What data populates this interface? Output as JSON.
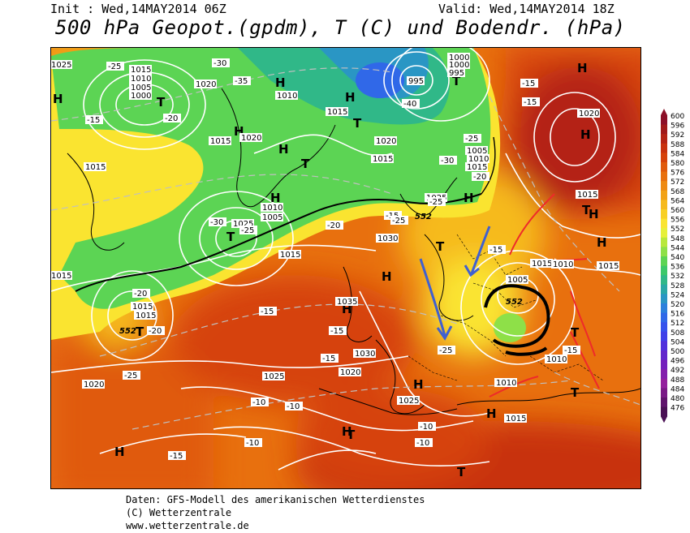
{
  "header": {
    "init": "Init : Wed,14MAY2014 06Z",
    "valid": "Valid: Wed,14MAY2014 18Z",
    "title": "500 hPa Geopot.(gpdm), T (C) und Bodendr. (hPa)"
  },
  "footer": {
    "line1": "Daten: GFS-Modell des amerikanischen Wetterdienstes",
    "line2": "(C) Wetterzentrale",
    "line3": "www.wetterzentrale.de"
  },
  "legend": {
    "labels": [
      "600",
      "596",
      "592",
      "588",
      "584",
      "580",
      "576",
      "572",
      "568",
      "564",
      "560",
      "556",
      "552",
      "548",
      "544",
      "540",
      "536",
      "532",
      "528",
      "524",
      "520",
      "516",
      "512",
      "508",
      "504",
      "500",
      "496",
      "492",
      "488",
      "484",
      "480",
      "476"
    ],
    "colors": [
      "#8c1028",
      "#a01a1a",
      "#b42414",
      "#c8320e",
      "#d6420a",
      "#e05a0c",
      "#e8700e",
      "#ee8a12",
      "#f2a216",
      "#f6ba1c",
      "#f8d024",
      "#fae430",
      "#e6f03a",
      "#b8e83c",
      "#8ee048",
      "#5cd454",
      "#3cc86a",
      "#30b888",
      "#2aa8a6",
      "#2a96c4",
      "#2c80dc",
      "#3068e8",
      "#3652ec",
      "#4040e8",
      "#5030dc",
      "#6226cc",
      "#7420bc",
      "#8420ac",
      "#94209e",
      "#7a1a86",
      "#60146c",
      "#4a1054"
    ]
  },
  "map_labels": {
    "high": "H",
    "low": "T",
    "isobars": [
      "1025",
      "1015",
      "1010",
      "1005",
      "1000",
      "1020",
      "1010",
      "1015",
      "1015",
      "1020",
      "1015",
      "1010",
      "1005",
      "1025",
      "1015",
      "1030",
      "1035",
      "1030",
      "1025",
      "1020",
      "1025",
      "1020",
      "1015",
      "1015",
      "1010",
      "1015",
      "1000",
      "995",
      "1000",
      "995",
      "1005",
      "1010",
      "1015",
      "1020",
      "1015",
      "1025",
      "1015",
      "1015",
      "1010",
      "1005",
      "1015",
      "1010",
      "1020",
      "1015"
    ],
    "temps": [
      "-30",
      "-25",
      "-35",
      "-20",
      "-15",
      "-40",
      "-30",
      "-25",
      "-20",
      "-25",
      "-30",
      "-25",
      "-20",
      "-15",
      "-20",
      "-25",
      "-15",
      "-15",
      "-15",
      "-10",
      "-10",
      "-10",
      "-10",
      "-15",
      "-25",
      "-15",
      "-15",
      "-15",
      "-20",
      "-25",
      "-10",
      "-10",
      "-15"
    ],
    "geopot": [
      "552",
      "552",
      "552"
    ]
  }
}
